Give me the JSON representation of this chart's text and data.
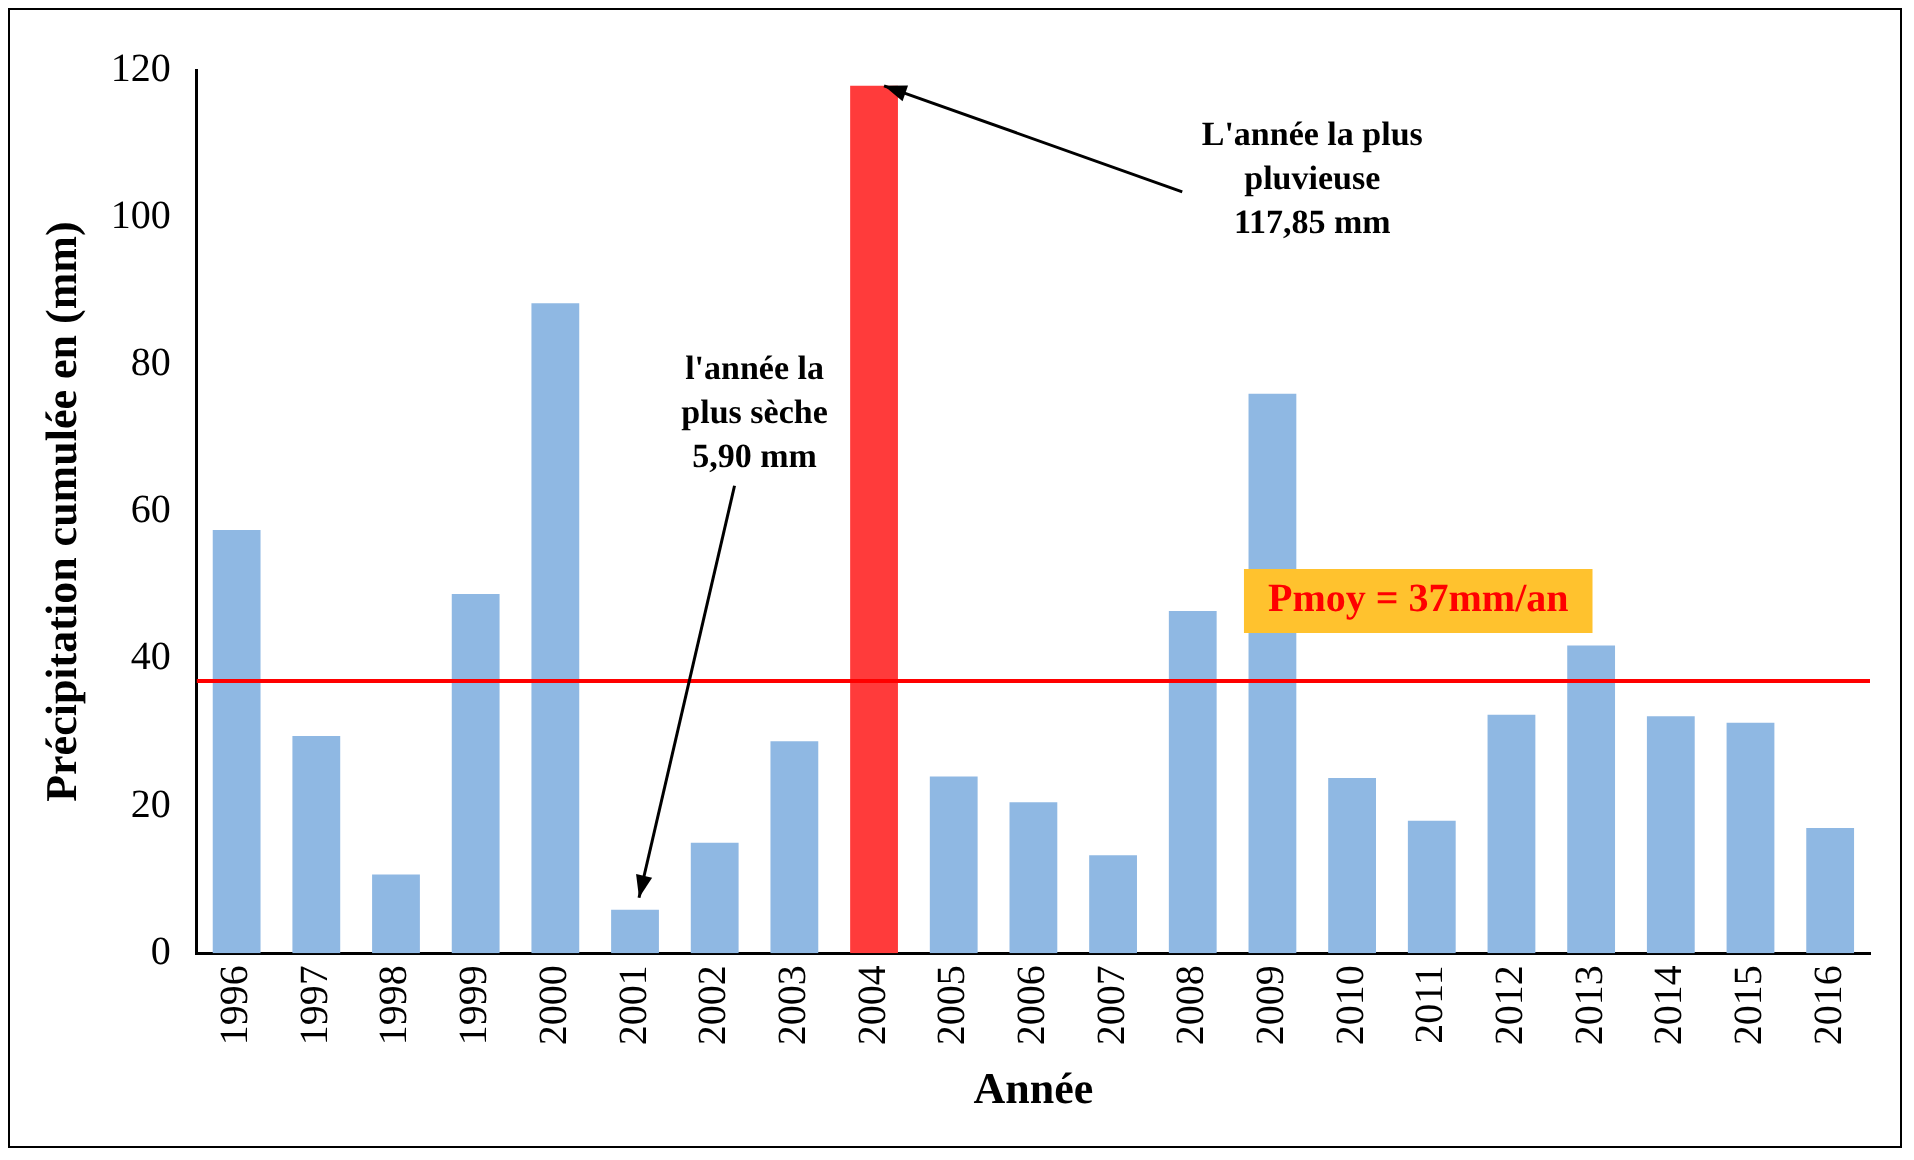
{
  "chart_data": {
    "type": "bar",
    "xlabel": "Année",
    "ylabel": "Précipitation cumulée en (mm)",
    "categories": [
      "1996",
      "1997",
      "1998",
      "1999",
      "2000",
      "2001",
      "2002",
      "2003",
      "2004",
      "2005",
      "2006",
      "2007",
      "2008",
      "2009",
      "2010",
      "2011",
      "2012",
      "2013",
      "2014",
      "2015",
      "2016"
    ],
    "values": [
      57.5,
      29.5,
      10.7,
      48.8,
      88.3,
      5.9,
      15,
      28.8,
      117.85,
      24,
      20.5,
      13.3,
      46.5,
      76,
      23.8,
      18,
      32.4,
      41.8,
      32.2,
      31.3,
      17
    ],
    "colors": [
      "#8fb8e3",
      "#8fb8e3",
      "#8fb8e3",
      "#8fb8e3",
      "#8fb8e3",
      "#8fb8e3",
      "#8fb8e3",
      "#8fb8e3",
      "#ff3b3b",
      "#8fb8e3",
      "#8fb8e3",
      "#8fb8e3",
      "#8fb8e3",
      "#8fb8e3",
      "#8fb8e3",
      "#8fb8e3",
      "#8fb8e3",
      "#8fb8e3",
      "#8fb8e3",
      "#8fb8e3",
      "#8fb8e3"
    ],
    "ylim": [
      0,
      120
    ],
    "yticks": [
      0,
      20,
      40,
      60,
      80,
      100,
      120
    ],
    "grid": false,
    "legend": false,
    "ref_lines": [
      {
        "axis": "y",
        "value": 37,
        "label": "Pmoy = 37mm/an",
        "color": "#ff0000"
      }
    ],
    "annotations": [
      {
        "text": "l'année la\nplus sèche\n5,90 mm",
        "x": "2001",
        "y": 5.9
      },
      {
        "text": "L'année la plus\npluvieuse\n117,85 mm",
        "x": "2004",
        "y": 117.85
      }
    ]
  }
}
